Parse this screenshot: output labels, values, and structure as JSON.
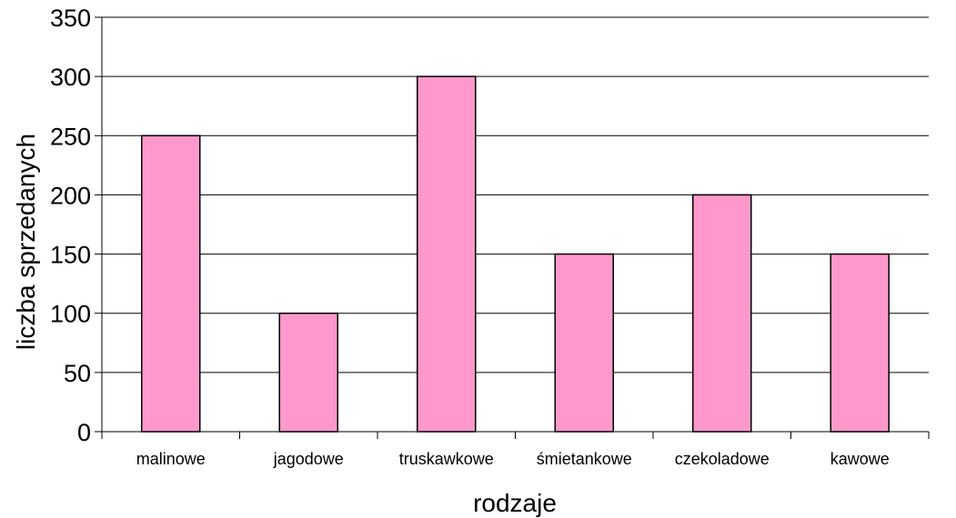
{
  "chart_data": {
    "type": "bar",
    "categories": [
      "malinowe",
      "jagodowe",
      "truskawkowe",
      "śmietankowe",
      "czekoladowe",
      "kawowe"
    ],
    "values": [
      250,
      100,
      300,
      150,
      200,
      150
    ],
    "title": "",
    "xlabel": "rodzaje",
    "ylabel": "liczba sprzedanych",
    "ylim": [
      0,
      350
    ],
    "yticks": [
      0,
      50,
      100,
      150,
      200,
      250,
      300,
      350
    ],
    "grid": true,
    "legend": "none",
    "colors": {
      "bar_fill": "#FF99CC",
      "bar_stroke": "#000000",
      "grid": "#000000",
      "axis": "#000000"
    }
  }
}
